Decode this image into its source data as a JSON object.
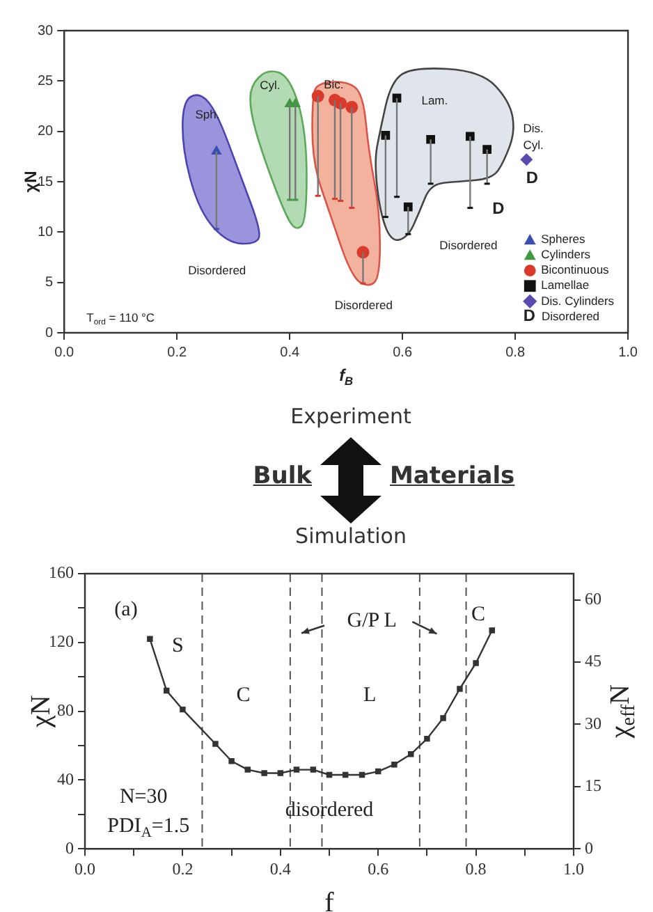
{
  "chart_data": [
    {
      "type": "scatter",
      "xlabel": "f$_{B}$",
      "ylabel": "χN",
      "xlim": [
        0,
        1
      ],
      "ylim": [
        0,
        30
      ],
      "xticks": [
        {
          "value": 0,
          "label": "0.0"
        },
        0.2,
        0.4,
        0.6,
        0.8,
        {
          "value": 1,
          "label": "1.0"
        }
      ],
      "yticks": [
        0,
        5,
        10,
        15,
        20,
        25,
        30
      ],
      "legend": "bottom right",
      "series": [
        {
          "name": "Spheres",
          "color": "#3a4fb0",
          "marker": "triangle",
          "x": [
            0.27
          ],
          "values": [
            18
          ],
          "errors": [
            [
              10.3,
              18
            ]
          ]
        },
        {
          "name": "Cylinders",
          "color": "#3f9a3f",
          "marker": "triangle",
          "x": [
            0.4,
            0.41
          ],
          "values": [
            22.7,
            22.7
          ],
          "errors": [
            [
              13.2,
              22.7
            ],
            [
              13.2,
              22.7
            ]
          ]
        },
        {
          "name": "Bicontinuous",
          "color": "#d93a2b",
          "marker": "circle",
          "x": [
            0.45,
            0.48,
            0.49,
            0.51,
            0.53
          ],
          "values": [
            23.5,
            23.1,
            22.8,
            22.4,
            8.0
          ],
          "errors": [
            [
              13.6,
              23.5
            ],
            [
              13.3,
              23.1
            ],
            [
              13.1,
              22.8
            ],
            [
              12.4,
              22.4
            ],
            [
              4.9,
              8.0
            ]
          ]
        },
        {
          "name": "Lamellae",
          "color": "#111111",
          "marker": "square",
          "x": [
            0.57,
            0.59,
            0.61,
            0.65,
            0.72,
            0.75
          ],
          "values": [
            19.6,
            23.3,
            12.5,
            19.2,
            19.5,
            18.2
          ],
          "errors": [
            [
              11.5,
              19.6
            ],
            [
              13.5,
              23.3
            ],
            [
              9.8,
              12.5
            ],
            [
              14.8,
              19.2
            ],
            [
              12.4,
              19.5
            ],
            [
              14.8,
              18.2
            ]
          ]
        },
        {
          "name": "Dis. Cylinders",
          "color": "#5a4ab0",
          "marker": "diamond",
          "x": [
            0.82
          ],
          "values": [
            17.2
          ]
        }
      ],
      "annotations": [
        "Sph.",
        "Cyl.",
        "Bic.",
        "Lam.",
        "Dis.",
        "Cyl.",
        "Disordered",
        "Disordered",
        "Disordered",
        "T$_{ord}$ = 110 °C",
        "D",
        "D",
        "D",
        "Disordered"
      ]
    },
    {
      "type": "other",
      "annotations": [
        "Experiment",
        "Bulk",
        "Materials",
        "Simulation"
      ]
    },
    {
      "type": "line",
      "xlabel": "f",
      "ylabel": "χN",
      "y2label": "χ$_{eff}$N",
      "marker": "square",
      "xlim": [
        0,
        1
      ],
      "ylim": [
        0,
        160
      ],
      "y2lim": [
        0,
        66.3
      ],
      "xticks": [
        {
          "value": 0,
          "label": "0.0"
        },
        {
          "value": 0.1,
          "label": null
        },
        0.2,
        {
          "value": 0.3,
          "label": null
        },
        0.4,
        {
          "value": 0.5,
          "label": null
        },
        0.6,
        {
          "value": 0.7,
          "label": null
        },
        0.8,
        {
          "value": 0.9,
          "label": null
        },
        {
          "value": 1,
          "label": "1.0"
        }
      ],
      "yticks": [
        0,
        {
          "value": 20,
          "label": null
        },
        40,
        {
          "value": 60,
          "label": null
        },
        80,
        {
          "value": 100,
          "label": null
        },
        120,
        {
          "value": 140,
          "label": null
        },
        160
      ],
      "y2ticks": [
        0,
        15,
        30,
        45,
        60
      ],
      "x": [
        0.133,
        0.167,
        0.2,
        0.267,
        0.3,
        0.333,
        0.367,
        0.4,
        0.433,
        0.467,
        0.5,
        0.533,
        0.567,
        0.6,
        0.633,
        0.667,
        0.7,
        0.733,
        0.767,
        0.8,
        0.833
      ],
      "series": [
        {
          "color": "#333333",
          "values": [
            122,
            92,
            81,
            61,
            51,
            46,
            44,
            44,
            46,
            46,
            43,
            43,
            43,
            45,
            49,
            55,
            64,
            76,
            93,
            108,
            127
          ]
        }
      ],
      "ref_lines": [
        {
          "axis": "x",
          "value": 0.24,
          "line_style": "dashed",
          "color": "#555555"
        },
        {
          "axis": "x",
          "value": 0.42,
          "line_style": "dashed",
          "color": "#555555"
        },
        {
          "axis": "x",
          "value": 0.485,
          "line_style": "dashed",
          "color": "#555555"
        },
        {
          "axis": "x",
          "value": 0.685,
          "line_style": "dashed",
          "color": "#555555"
        },
        {
          "axis": "x",
          "value": 0.78,
          "line_style": "dashed",
          "color": "#555555"
        }
      ],
      "annotations": [
        "(a)",
        "S",
        "C",
        "G/P L",
        "C",
        "L",
        "disordered",
        "N=30",
        "PDI$_{A}$=1.5"
      ]
    }
  ]
}
